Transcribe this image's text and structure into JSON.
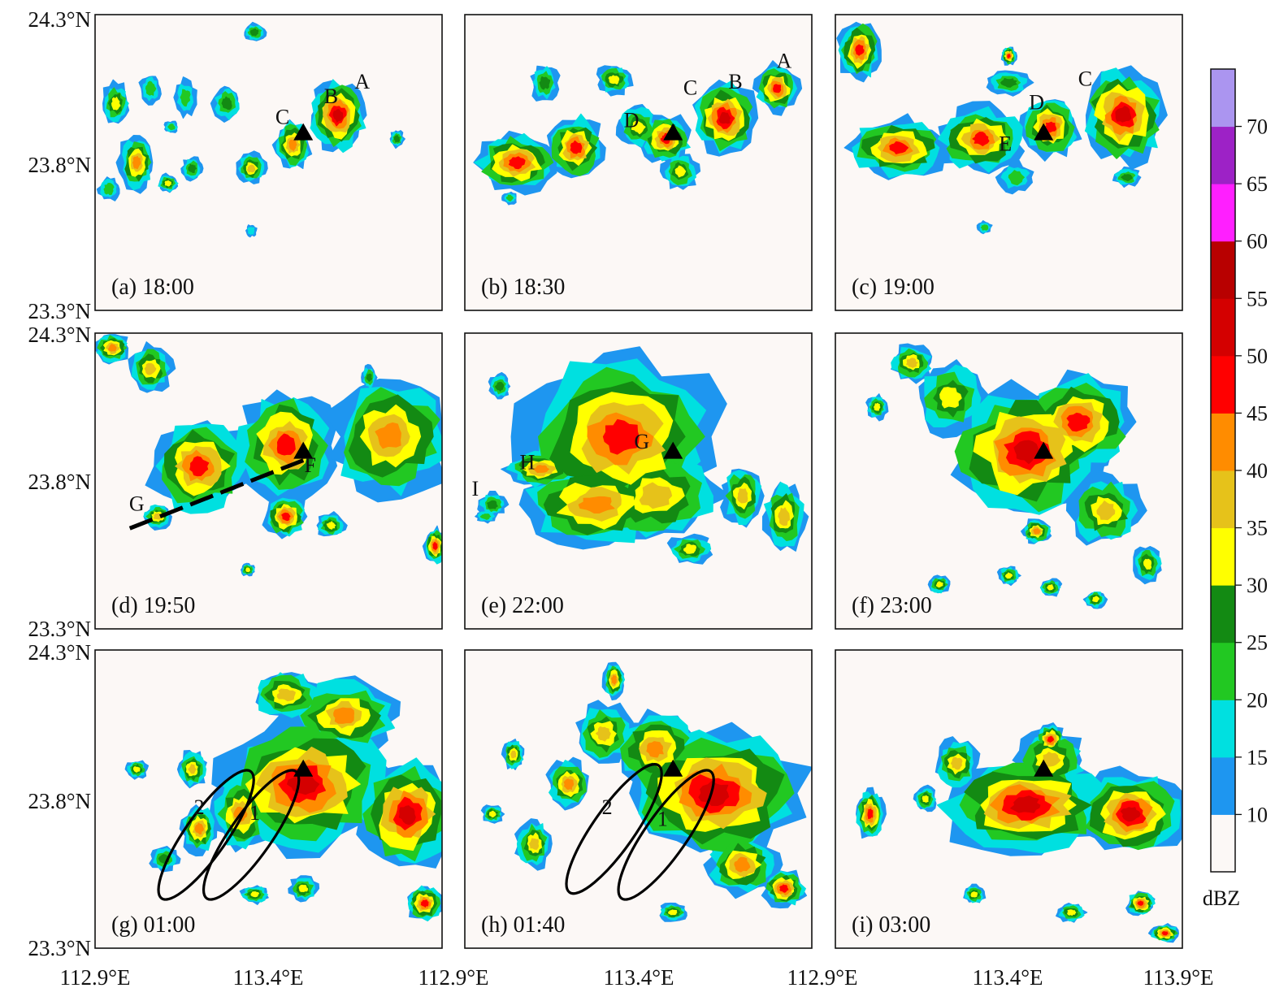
{
  "lat_labels": [
    "24.3°N",
    "23.8°N",
    "23.3°N"
  ],
  "lon_labels": [
    "112.9°E",
    "113.4°E",
    "112.9°E",
    "113.4°E",
    "112.9°E",
    "113.4°E",
    "113.9°E"
  ],
  "colorbar": {
    "unit": "dBZ",
    "ticks": [
      "10",
      "15",
      "20",
      "25",
      "30",
      "35",
      "40",
      "45",
      "50",
      "55",
      "60",
      "65",
      "70"
    ],
    "colors": [
      "#fcf8f6",
      "#1e96f0",
      "#00e0e0",
      "#22c822",
      "#138a13",
      "#ffff00",
      "#e6c21a",
      "#ff8c00",
      "#ff0000",
      "#d40000",
      "#b80000",
      "#ff1fff",
      "#9d22c6",
      "#ab95f0"
    ],
    "value_range_dbz": [
      5,
      75
    ]
  },
  "panels": [
    {
      "id": "a",
      "label": "(a) 18:00",
      "storm_labels": [
        "A",
        "B",
        "C"
      ],
      "site": true,
      "arrow": false,
      "ellipses": false
    },
    {
      "id": "b",
      "label": "(b) 18:30",
      "storm_labels": [
        "A",
        "B",
        "C",
        "D"
      ],
      "site": true,
      "arrow": false,
      "ellipses": false
    },
    {
      "id": "c",
      "label": "(c) 19:00",
      "storm_labels": [
        "C",
        "D",
        "E"
      ],
      "site": true,
      "arrow": false,
      "ellipses": false
    },
    {
      "id": "d",
      "label": "(d) 19:50",
      "storm_labels": [
        "F",
        "G"
      ],
      "site": true,
      "arrow": true,
      "ellipses": false
    },
    {
      "id": "e",
      "label": "(e) 22:00",
      "storm_labels": [
        "G",
        "H",
        "I"
      ],
      "site": true,
      "arrow": false,
      "ellipses": false
    },
    {
      "id": "f",
      "label": "(f) 23:00",
      "storm_labels": [],
      "site": true,
      "arrow": false,
      "ellipses": false
    },
    {
      "id": "g",
      "label": "(g) 01:00",
      "storm_labels": [
        "2",
        "1"
      ],
      "site": true,
      "arrow": false,
      "ellipses": true
    },
    {
      "id": "h",
      "label": "(h) 01:40",
      "storm_labels": [
        "2",
        "1"
      ],
      "site": true,
      "arrow": false,
      "ellipses": true
    },
    {
      "id": "i",
      "label": "(i) 03:00",
      "storm_labels": [],
      "site": true,
      "arrow": false,
      "ellipses": false
    }
  ]
}
